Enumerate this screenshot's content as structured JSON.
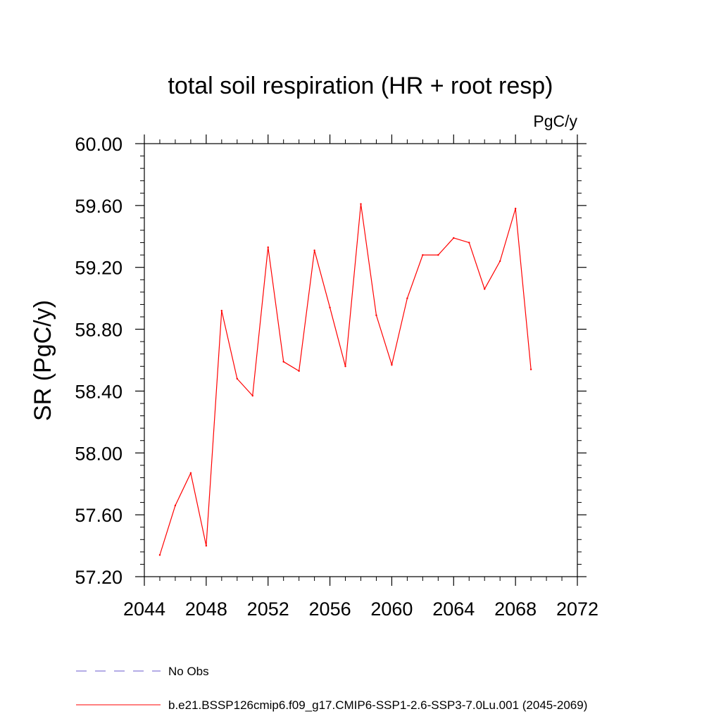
{
  "chart_data": {
    "type": "line",
    "title": "total soil respiration (HR + root resp)",
    "units": "PgC/y",
    "ylabel": "SR  (PgC/y)",
    "xlabel": "",
    "xlim": [
      2044,
      2072
    ],
    "ylim": [
      57.2,
      60.0
    ],
    "x_ticks": [
      "2044",
      "2048",
      "2052",
      "2056",
      "2060",
      "2064",
      "2068",
      "2072"
    ],
    "y_ticks": [
      "57.20",
      "57.60",
      "58.00",
      "58.40",
      "58.80",
      "59.20",
      "59.60",
      "60.00"
    ],
    "grid": false,
    "legend_position": "bottom-left",
    "x": [
      2045,
      2046,
      2047,
      2048,
      2049,
      2050,
      2051,
      2052,
      2053,
      2054,
      2055,
      2056,
      2057,
      2058,
      2059,
      2060,
      2061,
      2062,
      2063,
      2064,
      2065,
      2066,
      2067,
      2068,
      2069
    ],
    "series": [
      {
        "name": "b.e21.BSSP126cmip6.f09_g17.CMIP6-SSP1-2.6-SSP3-7.0Lu.001 (2045-2069)",
        "color": "#ff0000",
        "style": "solid",
        "values": [
          57.34,
          57.66,
          57.87,
          57.4,
          58.92,
          58.48,
          58.37,
          59.33,
          58.59,
          58.53,
          59.31,
          58.94,
          58.56,
          59.61,
          58.89,
          58.57,
          59.0,
          59.28,
          59.28,
          59.39,
          59.36,
          59.06,
          59.24,
          59.58,
          58.54
        ]
      }
    ],
    "legend": [
      {
        "label": "No Obs",
        "color": "#6a5acd",
        "style": "dashed"
      },
      {
        "label": "b.e21.BSSP126cmip6.f09_g17.CMIP6-SSP1-2.6-SSP3-7.0Lu.001 (2045-2069)",
        "color": "#ff0000",
        "style": "solid"
      }
    ]
  }
}
